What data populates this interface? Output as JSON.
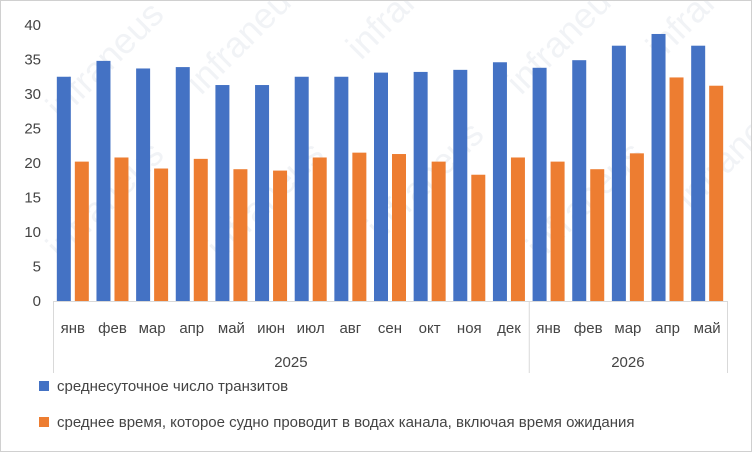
{
  "watermark_text": "infraneus",
  "chart_data": {
    "type": "bar",
    "categories": [
      "янв",
      "фев",
      "мар",
      "апр",
      "май",
      "июн",
      "июл",
      "авг",
      "сен",
      "окт",
      "ноя",
      "дек",
      "янв",
      "фев",
      "мар",
      "апр",
      "май"
    ],
    "groups": [
      {
        "label": "2025",
        "start": 0,
        "end": 11
      },
      {
        "label": "2026",
        "start": 12,
        "end": 16
      }
    ],
    "series": [
      {
        "name": "среднесуточное число транзитов",
        "color": "#4472c4",
        "values": [
          32.5,
          34.8,
          33.7,
          33.9,
          31.3,
          31.3,
          32.5,
          32.5,
          33.1,
          33.2,
          33.5,
          34.6,
          33.8,
          34.9,
          37.0,
          38.7,
          37.0
        ]
      },
      {
        "name": "среднее время, которое судно проводит в водах канала, включая время ожидания",
        "color": "#ed7d31",
        "values": [
          20.2,
          20.8,
          19.2,
          20.6,
          19.1,
          18.9,
          20.8,
          21.5,
          21.3,
          20.2,
          18.3,
          20.8,
          20.2,
          19.1,
          21.4,
          32.4,
          31.2
        ]
      }
    ],
    "ylim": [
      0,
      40
    ],
    "yticks": [
      "0",
      "5",
      "10",
      "15",
      "20",
      "25",
      "30",
      "35",
      "40"
    ],
    "grid": false,
    "legend": "bottom-left"
  }
}
